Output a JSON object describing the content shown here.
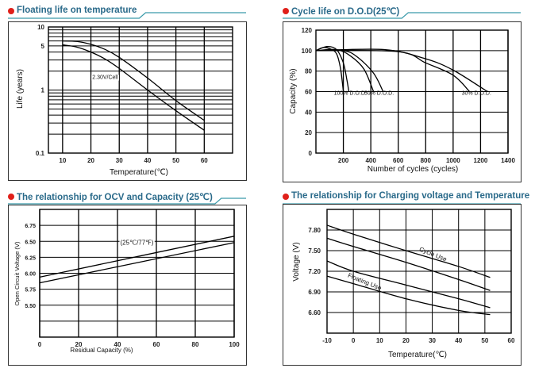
{
  "colors": {
    "accent_dot": "#e0201a",
    "title": "#2a6a8a",
    "rule": "#3a9aaa",
    "line": "#000000"
  },
  "chart_data": [
    {
      "title": "Floating life on temperature",
      "type": "line",
      "xlabel": "Temperature(℃)",
      "ylabel": "Life (years)",
      "xlim": [
        5,
        70
      ],
      "ylim": [
        0.1,
        10
      ],
      "yscale": "log",
      "grid": true,
      "xticks": [
        10,
        20,
        30,
        40,
        50,
        60
      ],
      "yticks": [
        {
          "v": 0.1,
          "label": "0.1"
        },
        {
          "v": 1,
          "label": "1"
        },
        {
          "v": 5,
          "label": "5"
        },
        {
          "v": 10,
          "label": "10"
        }
      ],
      "annotations": [
        {
          "text": "2.30V/Cell",
          "x": 25,
          "y": 1.5
        }
      ],
      "series": [
        {
          "points": [
            [
              10,
              6.0
            ],
            [
              15,
              5.9
            ],
            [
              20,
              5.3
            ],
            [
              25,
              4.4
            ],
            [
              30,
              3.3
            ],
            [
              40,
              1.55
            ],
            [
              50,
              0.68
            ],
            [
              60,
              0.33
            ]
          ]
        },
        {
          "points": [
            [
              10,
              5.2
            ],
            [
              15,
              4.8
            ],
            [
              20,
              4.0
            ],
            [
              25,
              3.1
            ],
            [
              30,
              2.2
            ],
            [
              40,
              1.0
            ],
            [
              50,
              0.47
            ],
            [
              60,
              0.23
            ]
          ]
        }
      ]
    },
    {
      "title": "Cycle life on D.O.D(25℃)",
      "type": "line",
      "xlabel": "Number of cycles (cycles)",
      "ylabel": "Capacity  (%)",
      "xlim": [
        0,
        1400
      ],
      "ylim": [
        0,
        120
      ],
      "grid": true,
      "xticks": [
        200,
        400,
        600,
        800,
        1000,
        1200,
        1400
      ],
      "yticks": [
        0,
        20,
        40,
        60,
        80,
        100,
        120
      ],
      "annotations": [
        {
          "text": "100% D.O.D.",
          "x": 250,
          "y": 57
        },
        {
          "text": "50% D.O.D.",
          "x": 460,
          "y": 57
        },
        {
          "text": "30% D.O.D.",
          "x": 1170,
          "y": 57
        }
      ],
      "series": [
        {
          "points": [
            [
              0,
              100
            ],
            [
              50,
              103
            ],
            [
              100,
              102
            ],
            [
              150,
              97
            ],
            [
              180,
              82
            ],
            [
              200,
              60
            ]
          ]
        },
        {
          "points": [
            [
              0,
              100
            ],
            [
              80,
              104
            ],
            [
              150,
              101
            ],
            [
              200,
              88
            ],
            [
              225,
              72
            ],
            [
              240,
              60
            ]
          ]
        },
        {
          "points": [
            [
              0,
              100
            ],
            [
              150,
              101
            ],
            [
              250,
              95
            ],
            [
              350,
              82
            ],
            [
              420,
              60
            ]
          ]
        },
        {
          "points": [
            [
              0,
              100
            ],
            [
              200,
              100
            ],
            [
              300,
              94
            ],
            [
              420,
              78
            ],
            [
              490,
              60
            ]
          ]
        },
        {
          "points": [
            [
              0,
              100
            ],
            [
              600,
              99
            ],
            [
              800,
              88
            ],
            [
              1000,
              76
            ],
            [
              1120,
              60
            ]
          ]
        },
        {
          "points": [
            [
              0,
              100
            ],
            [
              500,
              101
            ],
            [
              800,
              92
            ],
            [
              1000,
              81
            ],
            [
              1250,
              60
            ]
          ]
        }
      ]
    },
    {
      "title": "The relationship  for OCV and Capacity (25℃)",
      "type": "line",
      "xlabel": "Residual Capacity (%)",
      "ylabel": "Open Circuit Voltage (V)",
      "xlim": [
        0,
        100
      ],
      "ylim": [
        5.0,
        7.0
      ],
      "grid": true,
      "xticks": [
        0,
        20,
        40,
        60,
        80,
        100
      ],
      "yticks": [
        5.5,
        5.75,
        6.0,
        6.25,
        6.5,
        6.75
      ],
      "ytick_labels": [
        "5.50",
        "5.75",
        "6.00",
        "6.25",
        "6.50",
        "6.75"
      ],
      "annotations": [
        {
          "text": "(25℃/77℉)",
          "x": 50,
          "y": 6.45
        }
      ],
      "series": [
        {
          "points": [
            [
              0,
              5.94
            ],
            [
              100,
              6.58
            ]
          ]
        },
        {
          "points": [
            [
              0,
              5.85
            ],
            [
              100,
              6.48
            ]
          ]
        }
      ]
    },
    {
      "title": "The relationship for Charging voltage and Temperature",
      "type": "line",
      "xlabel": "Temperature(℃)",
      "ylabel": "Voltage (V)",
      "xlim": [
        -10,
        60
      ],
      "ylim": [
        6.3,
        8.1
      ],
      "grid": true,
      "xticks": [
        -10,
        0,
        10,
        20,
        30,
        40,
        50,
        60
      ],
      "yticks": [
        6.6,
        6.9,
        7.2,
        7.5,
        7.8
      ],
      "ytick_labels": [
        "6.60",
        "6.90",
        "7.20",
        "7.50",
        "7.80"
      ],
      "annotations": [
        {
          "text": "Cycle Use",
          "x": 30,
          "y": 7.42,
          "angle": 22
        },
        {
          "text": "Floating Use",
          "x": 4,
          "y": 7.02,
          "angle": 22
        }
      ],
      "series": [
        {
          "points": [
            [
              -10,
              7.87
            ],
            [
              0,
              7.74
            ],
            [
              20,
              7.5
            ],
            [
              40,
              7.27
            ],
            [
              52,
              7.11
            ]
          ]
        },
        {
          "points": [
            [
              -10,
              7.68
            ],
            [
              0,
              7.56
            ],
            [
              20,
              7.33
            ],
            [
              40,
              7.08
            ],
            [
              52,
              6.92
            ]
          ]
        },
        {
          "points": [
            [
              -10,
              7.35
            ],
            [
              0,
              7.2
            ],
            [
              20,
              7.0
            ],
            [
              40,
              6.8
            ],
            [
              52,
              6.67
            ]
          ]
        },
        {
          "points": [
            [
              -10,
              7.13
            ],
            [
              0,
              7.02
            ],
            [
              20,
              6.8
            ],
            [
              40,
              6.63
            ],
            [
              52,
              6.57
            ]
          ]
        }
      ]
    }
  ]
}
